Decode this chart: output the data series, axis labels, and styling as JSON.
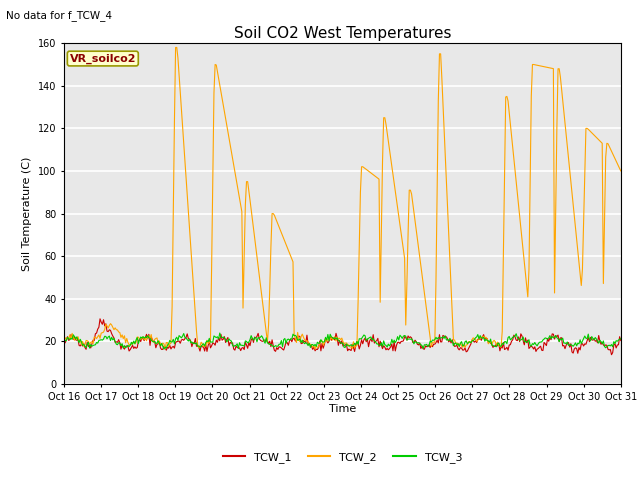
{
  "title": "Soil CO2 West Temperatures",
  "subtitle": "No data for f_TCW_4",
  "ylabel": "Soil Temperature (C)",
  "xlabel": "Time",
  "annotation": "VR_soilco2",
  "ylim": [
    0,
    160
  ],
  "yticks": [
    0,
    20,
    40,
    60,
    80,
    100,
    120,
    140,
    160
  ],
  "xtick_labels": [
    "Oct 16",
    "Oct 17",
    "Oct 18",
    "Oct 19",
    "Oct 20",
    "Oct 21",
    "Oct 22",
    "Oct 23",
    "Oct 24",
    "Oct 25",
    "Oct 26",
    "Oct 27",
    "Oct 28",
    "Oct 29",
    "Oct 30",
    "Oct 31"
  ],
  "bg_color": "#e8e8e8",
  "grid_color": "white",
  "tcw1_color": "#cc0000",
  "tcw2_color": "#ffa500",
  "tcw3_color": "#00cc00",
  "legend_entries": [
    "TCW_1",
    "TCW_2",
    "TCW_3"
  ],
  "title_fontsize": 11,
  "label_fontsize": 8,
  "tick_fontsize": 7
}
